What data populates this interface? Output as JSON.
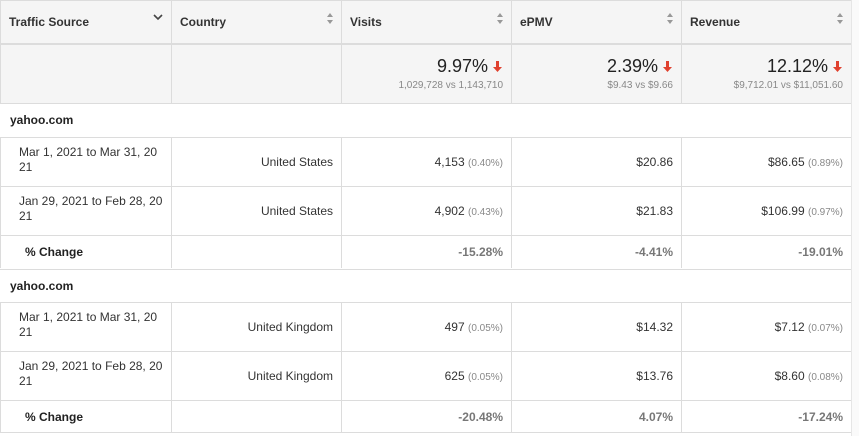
{
  "columns": [
    {
      "label": "Traffic Source"
    },
    {
      "label": "Country"
    },
    {
      "label": "Visits"
    },
    {
      "label": "ePMV"
    },
    {
      "label": "Revenue"
    }
  ],
  "summary": {
    "visits": {
      "change": "9.97%",
      "detail": "1,029,728 vs 1,143,710"
    },
    "epmv": {
      "change": "2.39%",
      "detail": "$9.43 vs $9.66"
    },
    "revenue": {
      "change": "12.12%",
      "detail": "$9,712.01 vs $11,051.60"
    },
    "arrow_color": "#e0412f"
  },
  "groups": [
    {
      "source": "yahoo.com",
      "rows": [
        {
          "date": "Mar 1, 2021 to Mar 31, 20",
          "date2": "21",
          "country": "United States",
          "visits": "4,153",
          "visits_pct": "(0.40%)",
          "epmv": "$20.86",
          "revenue": "$86.65",
          "revenue_pct": "(0.89%)"
        },
        {
          "date": "Jan 29, 2021 to Feb 28, 20",
          "date2": "21",
          "country": "United States",
          "visits": "4,902",
          "visits_pct": "(0.43%)",
          "epmv": "$21.83",
          "revenue": "$106.99",
          "revenue_pct": "(0.97%)"
        }
      ],
      "change": {
        "label": "% Change",
        "visits": "-15.28%",
        "epmv": "-4.41%",
        "revenue": "-19.01%"
      }
    },
    {
      "source": "yahoo.com",
      "rows": [
        {
          "date": "Mar 1, 2021 to Mar 31, 20",
          "date2": "21",
          "country": "United Kingdom",
          "visits": "497",
          "visits_pct": "(0.05%)",
          "epmv": "$14.32",
          "revenue": "$7.12",
          "revenue_pct": "(0.07%)"
        },
        {
          "date": "Jan 29, 2021 to Feb 28, 20",
          "date2": "21",
          "country": "United Kingdom",
          "visits": "625",
          "visits_pct": "(0.05%)",
          "epmv": "$13.76",
          "revenue": "$8.60",
          "revenue_pct": "(0.08%)"
        }
      ],
      "change": {
        "label": "% Change",
        "visits": "-20.48%",
        "epmv": "4.07%",
        "revenue": "-17.24%"
      }
    }
  ],
  "icons": {
    "header_first": "chevron-down-icon",
    "header_others": "sort-icon",
    "summary": "arrow-down-icon"
  }
}
